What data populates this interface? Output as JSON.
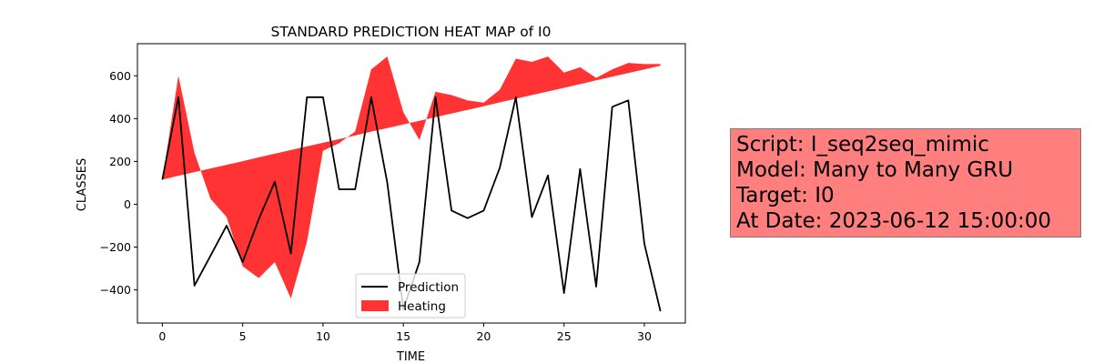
{
  "chart_data": {
    "type": "line+area",
    "title": "STANDARD PREDICTION HEAT MAP of I0",
    "xlabel": "TIME",
    "ylabel": "CLASSES",
    "xlim": [
      -1.55,
      32.55
    ],
    "ylim": [
      -555,
      750
    ],
    "xticks": [
      0,
      5,
      10,
      15,
      20,
      25,
      30
    ],
    "yticks": [
      -400,
      -200,
      0,
      200,
      400,
      600
    ],
    "grid": false,
    "legend_position": "lower-center",
    "series": [
      {
        "name": "Prediction",
        "kind": "line",
        "color": "#000000",
        "x": [
          0,
          1,
          2,
          3,
          4,
          5,
          6,
          7,
          8,
          9,
          10,
          11,
          12,
          13,
          14,
          15,
          16,
          17,
          18,
          19,
          20,
          21,
          22,
          23,
          24,
          25,
          26,
          27,
          28,
          29,
          30,
          31
        ],
        "y": [
          115,
          500,
          -380,
          -240,
          -100,
          -270,
          -70,
          105,
          -230,
          500,
          500,
          70,
          70,
          500,
          100,
          -490,
          -270,
          500,
          -30,
          -65,
          -30,
          170,
          500,
          -60,
          135,
          -415,
          165,
          -385,
          455,
          485,
          -185,
          -500
        ]
      },
      {
        "name": "Heating",
        "kind": "fill_between",
        "color": "#ff0000",
        "opacity": 0.8,
        "x": [
          0,
          1,
          2,
          3,
          4,
          5,
          6,
          7,
          8,
          9,
          10,
          11,
          12,
          13,
          14,
          15,
          16,
          17,
          18,
          19,
          20,
          21,
          22,
          23,
          24,
          25,
          26,
          27,
          28,
          29,
          30,
          31
        ],
        "y1": [
          115,
          600,
          240,
          25,
          -60,
          -290,
          -345,
          -270,
          -440,
          -175,
          250,
          285,
          340,
          630,
          690,
          430,
          300,
          525,
          510,
          485,
          475,
          535,
          680,
          665,
          690,
          615,
          640,
          590,
          630,
          660,
          655,
          655
        ],
        "y2": [
          115,
          133,
          150,
          167,
          184,
          201,
          219,
          236,
          253,
          270,
          287,
          304,
          321,
          339,
          356,
          373,
          390,
          407,
          424,
          441,
          458,
          476,
          493,
          510,
          527,
          544,
          561,
          579,
          596,
          613,
          630,
          647
        ]
      }
    ]
  },
  "info_box": {
    "background": "#ff7f7f",
    "lines": [
      "Script: I_seq2seq_mimic",
      "Model: Many to Many GRU",
      "Target: I0",
      "At Date: 2023-06-12 15:00:00"
    ]
  }
}
